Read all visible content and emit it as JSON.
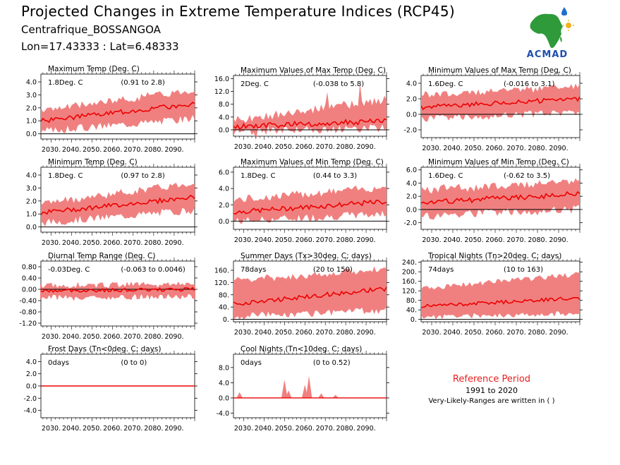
{
  "header": {
    "title": "Projected Changes in Extreme Temperature Indices (RCP45)",
    "station": "Centrafrique_BOSSANGOA",
    "location": "Lon=17.43333 : Lat=6.48333",
    "logo_text": "ACMAD"
  },
  "colors": {
    "band": "#f08080",
    "median": "#ee0000",
    "zero": "#000000",
    "reference": "#e8201f"
  },
  "reference": {
    "title": "Reference Period",
    "years": "1991 to 2020",
    "note": "Very-Likely-Ranges are written in ( )"
  },
  "chart_data": [
    {
      "type": "area",
      "title": "Maximum Temp (Deg. C)",
      "change": "1.8Deg. C",
      "range": "(0.91 to 2.8)",
      "xlim": [
        2025,
        2100
      ],
      "xticks": [
        "2030.",
        "2040.",
        "2050.",
        "2060.",
        "2070.",
        "2080.",
        "2090."
      ],
      "ylim": [
        -0.4,
        4.6
      ],
      "yticks": [
        "4.0",
        "3.0",
        "2.0",
        "1.0",
        "0.0"
      ],
      "ytick_values": [
        4,
        3,
        2,
        1,
        0
      ],
      "median": {
        "x": [
          2025,
          2100
        ],
        "y": [
          1.0,
          2.3
        ]
      },
      "band_lower": [
        0.2,
        1.2
      ],
      "band_upper": [
        1.8,
        3.4
      ],
      "variability": 0.3
    },
    {
      "type": "area",
      "title": "Maximum Values of Max Temp (Deg. C)",
      "change": "2Deg. C",
      "range": "(-0.038 to 5.8)",
      "xlim": [
        2025,
        2100
      ],
      "xticks": [
        "2030.",
        "2040.",
        "2050.",
        "2060.",
        "2070.",
        "2080.",
        "2090."
      ],
      "ylim": [
        -2.0,
        17.0
      ],
      "yticks": [
        "16.0",
        "12.0",
        "8.0",
        "4.0",
        "0.0"
      ],
      "ytick_values": [
        16,
        12,
        8,
        4,
        0
      ],
      "median": {
        "x": [
          2025,
          2100
        ],
        "y": [
          1.0,
          2.8
        ]
      },
      "band_lower": [
        -0.5,
        0.6
      ],
      "band_upper": [
        3.0,
        9.5
      ],
      "variability": 1.4
    },
    {
      "type": "area",
      "title": "Minimum Values of Max Temp (Deg. C)",
      "change": "1.6Deg. C",
      "range": "(-0.016 to 3.1)",
      "xlim": [
        2025,
        2100
      ],
      "xticks": [
        "2030.",
        "2040.",
        "2050.",
        "2060.",
        "2070.",
        "2080.",
        "2090."
      ],
      "ylim": [
        -3.0,
        5.0
      ],
      "yticks": [
        "4.0",
        "2.0",
        "0.0",
        "-2.0"
      ],
      "ytick_values": [
        4,
        2,
        0,
        -2
      ],
      "median": {
        "x": [
          2025,
          2100
        ],
        "y": [
          0.9,
          2.0
        ]
      },
      "band_lower": [
        -0.6,
        0.3
      ],
      "band_upper": [
        2.5,
        3.6
      ],
      "variability": 0.5
    },
    {
      "type": "area",
      "title": "Minimum Temp (Deg. C)",
      "change": "1.8Deg. C",
      "range": "(0.97 to 2.8)",
      "xlim": [
        2025,
        2100
      ],
      "xticks": [
        "2030.",
        "2040.",
        "2050.",
        "2060.",
        "2070.",
        "2080.",
        "2090."
      ],
      "ylim": [
        -0.4,
        4.6
      ],
      "yticks": [
        "4.0",
        "3.0",
        "2.0",
        "1.0",
        "0.0"
      ],
      "ytick_values": [
        4,
        3,
        2,
        1,
        0
      ],
      "median": {
        "x": [
          2025,
          2100
        ],
        "y": [
          1.1,
          2.3
        ]
      },
      "band_lower": [
        0.3,
        1.3
      ],
      "band_upper": [
        1.8,
        3.4
      ],
      "variability": 0.3
    },
    {
      "type": "area",
      "title": "Maximum Values of Min Temp (Deg. C)",
      "change": "1.8Deg. C",
      "range": "(0.44 to 3.3)",
      "xlim": [
        2025,
        2100
      ],
      "xticks": [
        "2030.",
        "2040.",
        "2050.",
        "2060.",
        "2070.",
        "2080.",
        "2090."
      ],
      "ylim": [
        -1.0,
        6.6
      ],
      "yticks": [
        "6.0",
        "4.0",
        "2.0",
        "0.0"
      ],
      "ytick_values": [
        6,
        4,
        2,
        0
      ],
      "median": {
        "x": [
          2025,
          2100
        ],
        "y": [
          1.1,
          2.4
        ]
      },
      "band_lower": [
        0.0,
        0.9
      ],
      "band_upper": [
        2.6,
        4.2
      ],
      "variability": 0.5
    },
    {
      "type": "area",
      "title": "Minimum Values of Min Temp (Deg. C)",
      "change": "1.6Deg. C",
      "range": "(-0.62 to 3.5)",
      "xlim": [
        2025,
        2100
      ],
      "xticks": [
        "2030.",
        "2040.",
        "2050.",
        "2060.",
        "2070.",
        "2080.",
        "2090."
      ],
      "ylim": [
        -3.0,
        6.4
      ],
      "yticks": [
        "6.0",
        "4.0",
        "2.0",
        "0.0",
        "-2.0"
      ],
      "ytick_values": [
        6,
        4,
        2,
        0,
        -2
      ],
      "median": {
        "x": [
          2025,
          2100
        ],
        "y": [
          1.0,
          2.4
        ]
      },
      "band_lower": [
        -1.0,
        0.0
      ],
      "band_upper": [
        3.0,
        4.2
      ],
      "variability": 0.7
    },
    {
      "type": "area",
      "title": "Diurnal Temp Range (Deg. C)",
      "change": "-0.03Deg. C",
      "range": "(-0.063 to 0.0046)",
      "xlim": [
        2025,
        2100
      ],
      "xticks": [
        "2030.",
        "2040.",
        "2050.",
        "2060.",
        "2070.",
        "2080.",
        "2090."
      ],
      "ylim": [
        -1.3,
        1.0
      ],
      "yticks": [
        "0.80",
        "0.40",
        "0.00",
        "-0.40",
        "-0.80",
        "-1.20"
      ],
      "ytick_values": [
        0.8,
        0.4,
        0,
        -0.4,
        -0.8,
        -1.2
      ],
      "median": {
        "x": [
          2025,
          2100
        ],
        "y": [
          -0.05,
          0.0
        ]
      },
      "band_lower": [
        -0.3,
        -0.25
      ],
      "band_upper": [
        0.12,
        0.18
      ],
      "variability": 0.1
    },
    {
      "type": "area",
      "title": "Summer Days (Tx>30deg. C; days)",
      "change": "78days",
      "range": "(20 to 150)",
      "xlim": [
        2025,
        2100
      ],
      "xticks": [
        "2030.",
        "2040.",
        "2050.",
        "2060.",
        "2070.",
        "2080.",
        "2090."
      ],
      "ylim": [
        -8,
        190
      ],
      "yticks": [
        "160.",
        "120.",
        "80.",
        "40.",
        "0."
      ],
      "ytick_values": [
        160,
        120,
        80,
        40,
        0
      ],
      "median": {
        "x": [
          2025,
          2100
        ],
        "y": [
          50,
          100
        ]
      },
      "band_lower": [
        10,
        30
      ],
      "band_upper": [
        125,
        165
      ],
      "variability": 12
    },
    {
      "type": "area",
      "title": "Tropical Nights (Tn>20deg. C; days)",
      "change": "74days",
      "range": "(10 to 163)",
      "xlim": [
        2025,
        2100
      ],
      "xticks": [
        "2030.",
        "2040.",
        "2050.",
        "2060.",
        "2070.",
        "2080.",
        "2090."
      ],
      "ylim": [
        -10,
        245
      ],
      "yticks": [
        "240.",
        "200.",
        "160.",
        "120.",
        "80.",
        "40.",
        "0."
      ],
      "ytick_values": [
        240,
        200,
        160,
        120,
        80,
        40,
        0
      ],
      "median": {
        "x": [
          2025,
          2100
        ],
        "y": [
          55,
          90
        ]
      },
      "band_lower": [
        10,
        25
      ],
      "band_upper": [
        130,
        190
      ],
      "variability": 12
    },
    {
      "type": "area",
      "title": "Frost Days (Tn<0deg. C; days)",
      "change": "0days",
      "range": "(0 to 0)",
      "xlim": [
        2025,
        2100
      ],
      "xticks": [
        "2030.",
        "2040.",
        "2050.",
        "2060.",
        "2070.",
        "2080.",
        "2090."
      ],
      "ylim": [
        -5.2,
        5.2
      ],
      "yticks": [
        "4.0",
        "2.0",
        "0.0",
        "-2.0",
        "-4.0"
      ],
      "ytick_values": [
        4,
        2,
        0,
        -2,
        -4
      ],
      "median": {
        "x": [
          2025,
          2100
        ],
        "y": [
          0,
          0
        ]
      },
      "band_lower": [
        0,
        0
      ],
      "band_upper": [
        0,
        0
      ],
      "variability": 0
    },
    {
      "type": "area",
      "title": "Cool Nights (Tn<10deg. C; days)",
      "change": "0days",
      "range": "(0 to 0.52)",
      "xlim": [
        2025,
        2100
      ],
      "xticks": [
        "2030.",
        "2040.",
        "2050.",
        "2060.",
        "2070.",
        "2080.",
        "2090."
      ],
      "ylim": [
        -5.2,
        11.5
      ],
      "yticks": [
        "8.0",
        "4.0",
        "0.0",
        "-4.0"
      ],
      "ytick_values": [
        8,
        4,
        0,
        -4
      ],
      "median": {
        "x": [
          2025,
          2100
        ],
        "y": [
          0,
          0
        ]
      },
      "band_lower": [
        0,
        0
      ],
      "band_upper": [
        0.3,
        0.6
      ],
      "variability": 0,
      "spikes": [
        [
          2028,
          1.5
        ],
        [
          2050,
          4.8
        ],
        [
          2052,
          2.0
        ],
        [
          2060,
          3.5
        ],
        [
          2062,
          5.8
        ],
        [
          2068,
          1.2
        ],
        [
          2075,
          0.8
        ]
      ]
    }
  ]
}
